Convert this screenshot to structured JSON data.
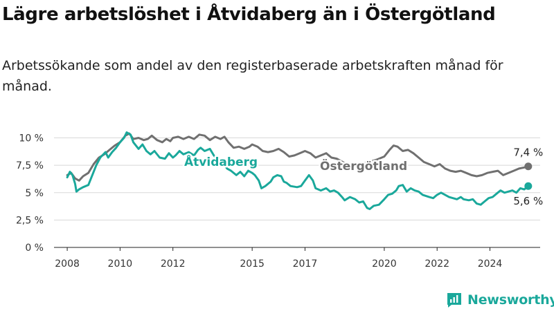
{
  "title": "Lägre arbetslöshet i Åtvidaberg än i Östergötland",
  "subtitle": "Arbetssökande som andel av den registerbaserade arbetskraften månad för månad.",
  "brand": {
    "name": "Newsworthy",
    "icon": "newsworthy-chart-logo-icon"
  },
  "colors": {
    "atvidaberg": "#1aa89b",
    "ostergotland": "#707070",
    "grid": "#d8d8d8",
    "axis": "#222222"
  },
  "chart_data": {
    "type": "line",
    "xlim": [
      2007.5,
      2025.9
    ],
    "ylim": [
      0,
      10.6
    ],
    "x_ticks": [
      2008,
      2010,
      2012,
      2015,
      2017,
      2020,
      2022,
      2024
    ],
    "y_ticks": [
      {
        "value": 0,
        "label": "0 %"
      },
      {
        "value": 2.5,
        "label": "2,5 %"
      },
      {
        "value": 5,
        "label": "5 %"
      },
      {
        "value": 7.5,
        "label": "7,5 %"
      },
      {
        "value": 10,
        "label": "10 %"
      }
    ],
    "grid": true,
    "legend": "inline labels",
    "series": [
      {
        "name": "Åtvidaberg",
        "color": "#1aa89b",
        "end_label": "5,6 %",
        "points": [
          [
            2008.0,
            6.4
          ],
          [
            2008.1,
            6.9
          ],
          [
            2008.2,
            6.6
          ],
          [
            2008.3,
            5.8
          ],
          [
            2008.35,
            5.1
          ],
          [
            2008.45,
            5.3
          ],
          [
            2008.6,
            5.5
          ],
          [
            2008.8,
            5.7
          ],
          [
            2008.95,
            6.6
          ],
          [
            2009.1,
            7.5
          ],
          [
            2009.25,
            8.2
          ],
          [
            2009.45,
            8.7
          ],
          [
            2009.55,
            8.2
          ],
          [
            2009.7,
            8.7
          ],
          [
            2009.85,
            9.1
          ],
          [
            2010.0,
            9.6
          ],
          [
            2010.15,
            10.0
          ],
          [
            2010.25,
            10.5
          ],
          [
            2010.4,
            10.3
          ],
          [
            2010.5,
            9.6
          ],
          [
            2010.7,
            9.0
          ],
          [
            2010.85,
            9.4
          ],
          [
            2011.0,
            8.8
          ],
          [
            2011.15,
            8.5
          ],
          [
            2011.3,
            8.8
          ],
          [
            2011.5,
            8.2
          ],
          [
            2011.7,
            8.1
          ],
          [
            2011.85,
            8.6
          ],
          [
            2012.0,
            8.2
          ],
          [
            2012.1,
            8.4
          ],
          [
            2012.25,
            8.8
          ],
          [
            2012.4,
            8.5
          ],
          [
            2012.6,
            8.7
          ],
          [
            2012.8,
            8.4
          ],
          [
            2012.95,
            8.9
          ],
          [
            2013.05,
            9.1
          ],
          [
            2013.2,
            8.8
          ],
          [
            2013.4,
            9.0
          ],
          [
            2013.55,
            8.4
          ],
          [
            2013.7,
            8.0
          ],
          [
            2013.9,
            7.7
          ],
          [
            2014.05,
            7.2
          ],
          [
            2014.2,
            7.0
          ],
          [
            2014.4,
            6.6
          ],
          [
            2014.55,
            6.9
          ],
          [
            2014.7,
            6.5
          ],
          [
            2014.85,
            7.0
          ],
          [
            2015.0,
            6.8
          ],
          [
            2015.1,
            6.6
          ],
          [
            2015.25,
            6.1
          ],
          [
            2015.35,
            5.4
          ],
          [
            2015.5,
            5.6
          ],
          [
            2015.7,
            6.0
          ],
          [
            2015.8,
            6.4
          ],
          [
            2015.95,
            6.6
          ],
          [
            2016.1,
            6.5
          ],
          [
            2016.2,
            6.0
          ],
          [
            2016.3,
            5.9
          ],
          [
            2016.45,
            5.6
          ],
          [
            2016.7,
            5.5
          ],
          [
            2016.85,
            5.6
          ],
          [
            2017.0,
            6.1
          ],
          [
            2017.15,
            6.6
          ],
          [
            2017.3,
            6.1
          ],
          [
            2017.4,
            5.4
          ],
          [
            2017.6,
            5.2
          ],
          [
            2017.8,
            5.4
          ],
          [
            2017.95,
            5.1
          ],
          [
            2018.1,
            5.2
          ],
          [
            2018.25,
            5.0
          ],
          [
            2018.4,
            4.6
          ],
          [
            2018.5,
            4.3
          ],
          [
            2018.7,
            4.6
          ],
          [
            2018.9,
            4.4
          ],
          [
            2019.05,
            4.1
          ],
          [
            2019.2,
            4.2
          ],
          [
            2019.35,
            3.6
          ],
          [
            2019.45,
            3.5
          ],
          [
            2019.6,
            3.8
          ],
          [
            2019.8,
            3.9
          ],
          [
            2020.0,
            4.4
          ],
          [
            2020.15,
            4.8
          ],
          [
            2020.3,
            4.9
          ],
          [
            2020.45,
            5.2
          ],
          [
            2020.55,
            5.6
          ],
          [
            2020.7,
            5.7
          ],
          [
            2020.85,
            5.1
          ],
          [
            2021.0,
            5.4
          ],
          [
            2021.15,
            5.2
          ],
          [
            2021.3,
            5.1
          ],
          [
            2021.45,
            4.8
          ],
          [
            2021.7,
            4.6
          ],
          [
            2021.85,
            4.5
          ],
          [
            2022.0,
            4.8
          ],
          [
            2022.15,
            5.0
          ],
          [
            2022.3,
            4.8
          ],
          [
            2022.45,
            4.6
          ],
          [
            2022.6,
            4.5
          ],
          [
            2022.75,
            4.4
          ],
          [
            2022.9,
            4.6
          ],
          [
            2023.0,
            4.4
          ],
          [
            2023.2,
            4.3
          ],
          [
            2023.35,
            4.4
          ],
          [
            2023.5,
            4.0
          ],
          [
            2023.65,
            3.9
          ],
          [
            2023.8,
            4.2
          ],
          [
            2023.95,
            4.5
          ],
          [
            2024.1,
            4.6
          ],
          [
            2024.25,
            4.9
          ],
          [
            2024.4,
            5.2
          ],
          [
            2024.55,
            5.0
          ],
          [
            2024.7,
            5.1
          ],
          [
            2024.85,
            5.2
          ],
          [
            2025.0,
            5.0
          ],
          [
            2025.15,
            5.4
          ],
          [
            2025.3,
            5.3
          ],
          [
            2025.45,
            5.6
          ]
        ]
      },
      {
        "name": "Östergötland",
        "color": "#707070",
        "end_label": "7,4 %",
        "points": [
          [
            2008.0,
            6.6
          ],
          [
            2008.15,
            6.8
          ],
          [
            2008.3,
            6.3
          ],
          [
            2008.45,
            6.1
          ],
          [
            2008.6,
            6.5
          ],
          [
            2008.8,
            6.8
          ],
          [
            2009.0,
            7.6
          ],
          [
            2009.2,
            8.2
          ],
          [
            2009.4,
            8.5
          ],
          [
            2009.6,
            8.9
          ],
          [
            2009.8,
            9.3
          ],
          [
            2010.0,
            9.6
          ],
          [
            2010.2,
            10.2
          ],
          [
            2010.35,
            10.4
          ],
          [
            2010.5,
            9.9
          ],
          [
            2010.7,
            10.0
          ],
          [
            2010.9,
            9.8
          ],
          [
            2011.05,
            9.9
          ],
          [
            2011.2,
            10.2
          ],
          [
            2011.4,
            9.8
          ],
          [
            2011.6,
            9.6
          ],
          [
            2011.75,
            9.9
          ],
          [
            2011.9,
            9.7
          ],
          [
            2012.0,
            10.0
          ],
          [
            2012.2,
            10.1
          ],
          [
            2012.4,
            9.9
          ],
          [
            2012.6,
            10.1
          ],
          [
            2012.8,
            9.9
          ],
          [
            2013.0,
            10.3
          ],
          [
            2013.2,
            10.2
          ],
          [
            2013.4,
            9.8
          ],
          [
            2013.6,
            10.1
          ],
          [
            2013.8,
            9.9
          ],
          [
            2013.95,
            10.1
          ],
          [
            2014.1,
            9.6
          ],
          [
            2014.3,
            9.1
          ],
          [
            2014.5,
            9.2
          ],
          [
            2014.7,
            9.0
          ],
          [
            2014.9,
            9.2
          ],
          [
            2015.0,
            9.4
          ],
          [
            2015.2,
            9.2
          ],
          [
            2015.4,
            8.8
          ],
          [
            2015.6,
            8.7
          ],
          [
            2015.8,
            8.8
          ],
          [
            2016.0,
            9.0
          ],
          [
            2016.2,
            8.7
          ],
          [
            2016.4,
            8.3
          ],
          [
            2016.6,
            8.4
          ],
          [
            2016.8,
            8.6
          ],
          [
            2017.0,
            8.8
          ],
          [
            2017.2,
            8.6
          ],
          [
            2017.4,
            8.2
          ],
          [
            2017.6,
            8.4
          ],
          [
            2017.8,
            8.6
          ],
          [
            2018.0,
            8.2
          ],
          [
            2018.2,
            8.1
          ],
          [
            2018.5,
            7.7
          ],
          [
            2018.8,
            7.6
          ],
          [
            2019.1,
            7.6
          ],
          [
            2019.4,
            7.8
          ],
          [
            2019.7,
            8.0
          ],
          [
            2020.0,
            8.3
          ],
          [
            2020.2,
            8.9
          ],
          [
            2020.35,
            9.3
          ],
          [
            2020.5,
            9.2
          ],
          [
            2020.7,
            8.8
          ],
          [
            2020.9,
            8.9
          ],
          [
            2021.1,
            8.6
          ],
          [
            2021.3,
            8.2
          ],
          [
            2021.5,
            7.8
          ],
          [
            2021.7,
            7.6
          ],
          [
            2021.9,
            7.4
          ],
          [
            2022.1,
            7.6
          ],
          [
            2022.3,
            7.2
          ],
          [
            2022.5,
            7.0
          ],
          [
            2022.7,
            6.9
          ],
          [
            2022.9,
            7.0
          ],
          [
            2023.1,
            6.8
          ],
          [
            2023.3,
            6.6
          ],
          [
            2023.5,
            6.5
          ],
          [
            2023.7,
            6.6
          ],
          [
            2023.9,
            6.8
          ],
          [
            2024.1,
            6.9
          ],
          [
            2024.3,
            7.0
          ],
          [
            2024.5,
            6.6
          ],
          [
            2024.7,
            6.8
          ],
          [
            2024.9,
            7.0
          ],
          [
            2025.1,
            7.2
          ],
          [
            2025.3,
            7.3
          ],
          [
            2025.45,
            7.4
          ]
        ]
      }
    ]
  }
}
